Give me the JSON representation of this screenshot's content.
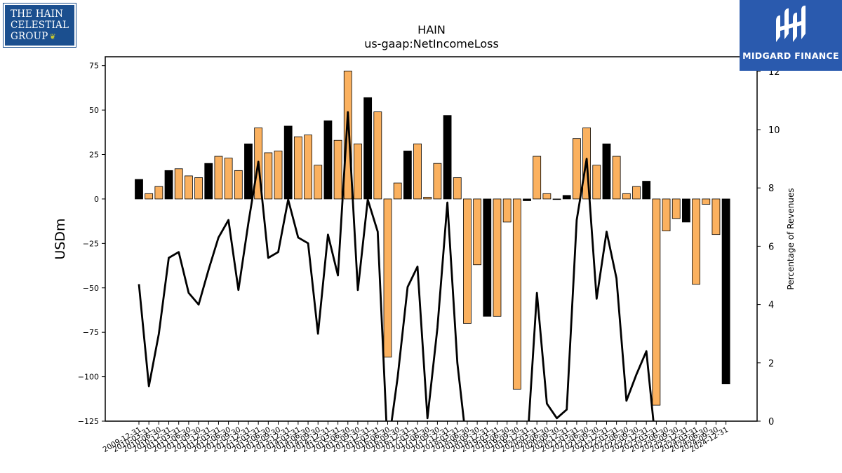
{
  "logos": {
    "left_lines": [
      "THE HAIN",
      "CELESTIAL",
      "GROUP"
    ],
    "left_icon": "leaf-icon",
    "right_icon": "midgard-m-icon",
    "right_text": "MIDGARD FINANCE"
  },
  "chart_data": {
    "type": "bar",
    "title": "HAIN",
    "subtitle": "us-gaap:NetIncomeLoss",
    "ylabel": "USDm",
    "y2label": "Percentage of Revenues",
    "ylim": [
      -125,
      80
    ],
    "y2lim": [
      0,
      12.5
    ],
    "yticks": [
      -125,
      -100,
      -75,
      -50,
      -25,
      0,
      25,
      50,
      75
    ],
    "y2ticks": [
      0,
      2,
      4,
      6,
      8,
      10,
      12
    ],
    "grid": false,
    "legend": "none",
    "colors": {
      "annual": "#000000",
      "quarterly": "#fbb15f",
      "line": "#000000"
    },
    "categories": [
      "2009-12-31",
      "2010-03-31",
      "2010-06-30",
      "2010-12-31",
      "2011-03-31",
      "2011-06-30",
      "2011-09-30",
      "2011-12-31",
      "2012-03-31",
      "2012-06-30",
      "2012-09-30",
      "2012-12-31",
      "2013-03-31",
      "2013-06-30",
      "2013-09-30",
      "2013-12-31",
      "2014-03-31",
      "2014-06-30",
      "2014-09-30",
      "2014-12-31",
      "2015-03-31",
      "2015-06-30",
      "2015-09-30",
      "2015-12-31",
      "2016-03-31",
      "2016-06-30",
      "2016-09-30",
      "2016-12-31",
      "2017-03-31",
      "2017-06-30",
      "2017-09-30",
      "2017-12-31",
      "2018-03-31",
      "2018-06-30",
      "2018-09-30",
      "2018-12-31",
      "2019-03-31",
      "2019-06-30",
      "2019-09-30",
      "2019-12-31",
      "2020-03-31",
      "2020-06-30",
      "2020-09-30",
      "2020-12-31",
      "2021-03-31",
      "2021-06-30",
      "2021-09-30",
      "2021-12-31",
      "2022-03-31",
      "2022-06-30",
      "2022-09-30",
      "2022-12-31",
      "2023-03-31",
      "2023-06-30",
      "2023-09-30",
      "2023-12-31",
      "2024-03-31",
      "2024-06-30",
      "2024-09-30",
      "2024-12-31"
    ],
    "series": [
      {
        "values": [
          11,
          3,
          7,
          16,
          17,
          13,
          12,
          20,
          24,
          23,
          16,
          31,
          40,
          26,
          27,
          41,
          35,
          36,
          19,
          44,
          33,
          72,
          31,
          57,
          49,
          -89,
          9,
          27,
          31,
          1,
          20,
          47,
          12,
          -70,
          -37,
          -66,
          -66,
          -13,
          -107,
          -1,
          24,
          3,
          0,
          2,
          34,
          40,
          19,
          31,
          24,
          3,
          7,
          10,
          -116,
          -18,
          -11,
          -13,
          -48,
          -3,
          -20,
          -104
        ],
        "annual": [
          true,
          false,
          false,
          true,
          false,
          false,
          false,
          true,
          false,
          false,
          false,
          true,
          false,
          false,
          false,
          true,
          false,
          false,
          false,
          true,
          false,
          false,
          false,
          true,
          false,
          false,
          false,
          true,
          false,
          false,
          false,
          true,
          false,
          false,
          false,
          true,
          false,
          false,
          false,
          true,
          false,
          false,
          false,
          true,
          false,
          false,
          false,
          true,
          false,
          false,
          false,
          true,
          false,
          false,
          false,
          true,
          false,
          false,
          false,
          true
        ]
      },
      {
        "values": [
          4.7,
          1.2,
          3.0,
          5.6,
          5.8,
          4.4,
          4.0,
          5.2,
          6.3,
          6.9,
          4.5,
          6.8,
          8.9,
          5.6,
          5.8,
          7.6,
          6.3,
          6.1,
          3.0,
          6.4,
          5.0,
          10.6,
          4.5,
          7.6,
          6.5,
          -1.0,
          1.5,
          4.6,
          5.3,
          0.1,
          3.2,
          7.5,
          2.0,
          -1.0,
          -1.0,
          -1.0,
          -1.0,
          -1.0,
          -1.0,
          -1.0,
          4.4,
          0.6,
          0.1,
          0.4,
          6.9,
          9.0,
          4.2,
          6.5,
          4.9,
          0.7,
          1.6,
          2.4,
          -1.0,
          null,
          null,
          null,
          null,
          null,
          null,
          null
        ]
      }
    ]
  }
}
